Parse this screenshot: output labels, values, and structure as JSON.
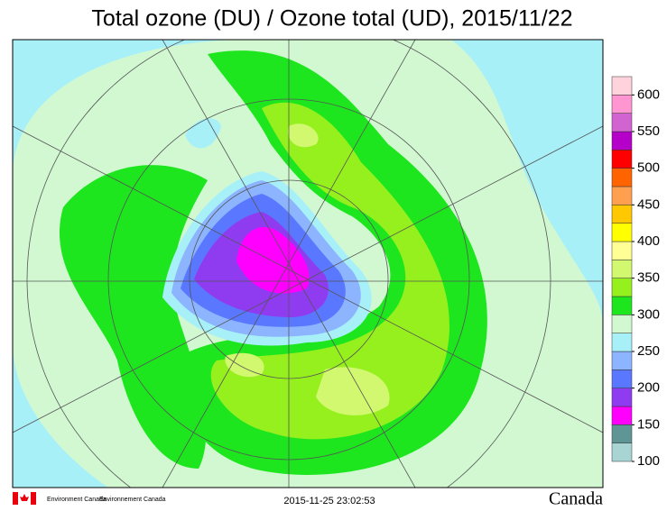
{
  "title": "Total ozone (DU) / Ozone total (UD), 2015/11/22",
  "colorbar": {
    "lim": [
      100,
      625
    ],
    "colors": [
      "#a8d4d4",
      "#5f9595",
      "#ff00ff",
      "#8f3cf0",
      "#5a78ff",
      "#8cb4ff",
      "#a8f0f8",
      "#d2f8d2",
      "#1ee61e",
      "#96f01e",
      "#d2f870",
      "#ffff96",
      "#ffff00",
      "#ffc800",
      "#ffa050",
      "#ff6400",
      "#ff0000",
      "#b400c8",
      "#d264d2",
      "#ff96d2",
      "#ffd2dc"
    ],
    "ticks": [
      100,
      150,
      200,
      250,
      300,
      350,
      400,
      450,
      500,
      550,
      600
    ]
  },
  "footer": {
    "agency_en": "Environment Canada",
    "agency_fr": "Environnement Canada",
    "timestamp": "2015-11-25 23:02:53",
    "wordmark": "Canada"
  }
}
